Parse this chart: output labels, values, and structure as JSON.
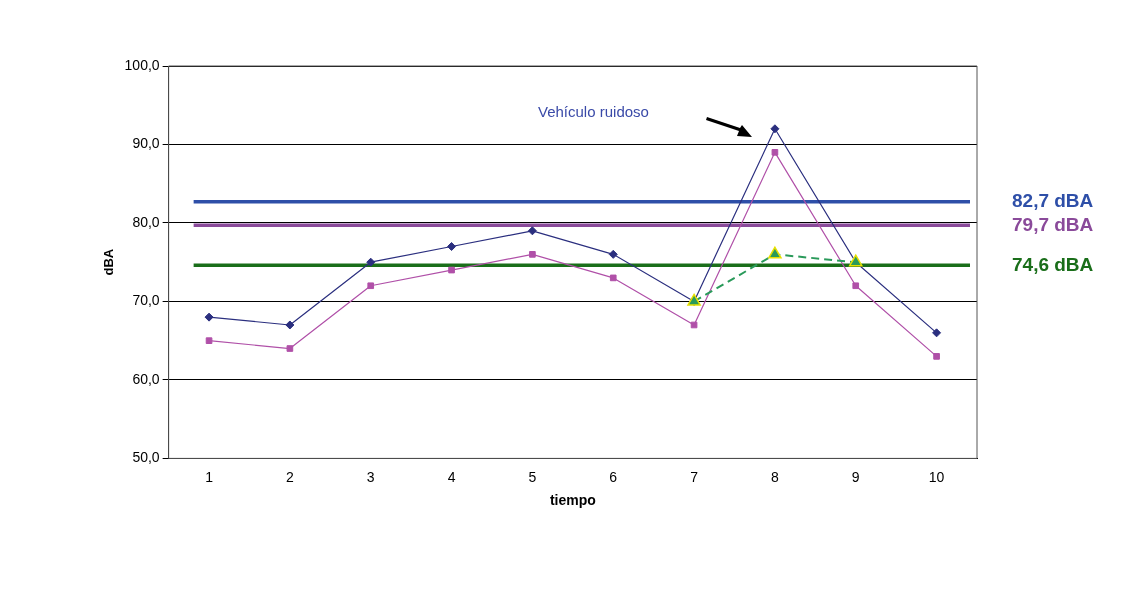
{
  "chart_data": {
    "type": "line",
    "xlabel": "tiempo",
    "ylabel": "dBA",
    "categories": [
      "1",
      "2",
      "3",
      "4",
      "5",
      "6",
      "7",
      "8",
      "9",
      "10"
    ],
    "series": [
      {
        "color": "#2b2f7f",
        "marker": "diamond",
        "line_style": "solid",
        "values": [
          68,
          67,
          75,
          77,
          79,
          76,
          70,
          92,
          75,
          66
        ]
      },
      {
        "color": "#b050a8",
        "marker": "square",
        "line_style": "solid",
        "values": [
          65,
          64,
          72,
          74,
          76,
          73,
          67,
          89,
          72,
          63
        ]
      },
      {
        "color": "#2a9a5a",
        "marker": "triangle",
        "line_style": "dashed",
        "values": [
          null,
          null,
          null,
          null,
          null,
          null,
          70,
          76,
          75,
          null
        ]
      }
    ],
    "ylim": [
      50,
      100
    ],
    "yticks": [
      {
        "value": 50,
        "label": "50,0"
      },
      {
        "value": 60,
        "label": "60,0"
      },
      {
        "value": 70,
        "label": "70,0"
      },
      {
        "value": 80,
        "label": "80,0"
      },
      {
        "value": 90,
        "label": "90,0"
      },
      {
        "value": 100,
        "label": "100,0"
      }
    ],
    "grid": "y",
    "legend": false,
    "ref_lines": [
      {
        "axis": "y",
        "value": 82.7,
        "label": "82,7 dBA",
        "color": "#2e4fa8"
      },
      {
        "axis": "y",
        "value": 79.7,
        "label": "79,7 dBA",
        "color": "#8a4a9a"
      },
      {
        "axis": "y",
        "value": 74.6,
        "label": "74,6 dBA",
        "color": "#1a6e1a"
      }
    ],
    "annotations": [
      "Vehículo ruidoso"
    ]
  }
}
